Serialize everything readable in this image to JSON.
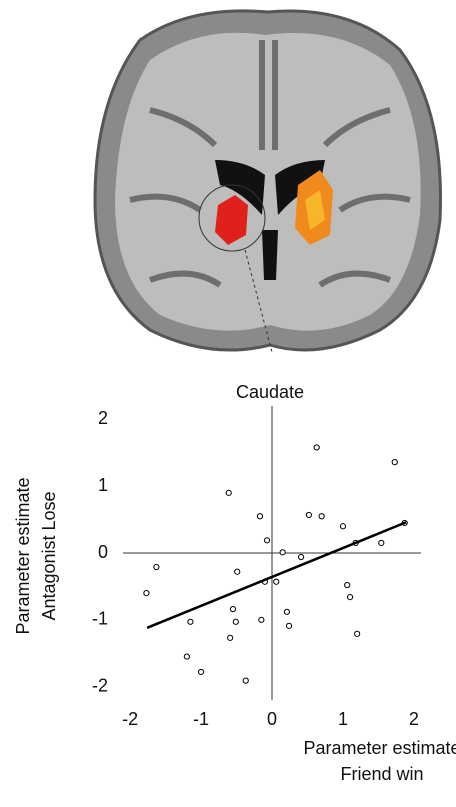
{
  "chart_data": {
    "type": "scatter",
    "title": "Caudate",
    "xlabel": [
      "Parameter estimate",
      "Friend win"
    ],
    "ylabel": [
      "Parameter estimate",
      "Antagonist Lose"
    ],
    "xlim": [
      -2.1,
      2.1
    ],
    "ylim": [
      -2.2,
      2.2
    ],
    "xticks": [
      -2,
      -1,
      0,
      1,
      2
    ],
    "yticks": [
      -2,
      -1,
      0,
      1,
      2
    ],
    "color": "#000000",
    "x": [
      0.63,
      1.73,
      -0.61,
      -0.17,
      0.52,
      0.7,
      1.0,
      1.87,
      -0.07,
      1.18,
      1.54,
      0.15,
      0.41,
      -1.63,
      -0.49,
      -0.1,
      0.06,
      1.06,
      1.1,
      -1.77,
      -0.55,
      0.21,
      -1.15,
      -0.51,
      -0.15,
      0.24,
      -0.59,
      1.2,
      -1.2,
      -1.0,
      -0.37
    ],
    "y": [
      1.58,
      1.36,
      0.9,
      0.55,
      0.57,
      0.55,
      0.4,
      0.45,
      0.19,
      0.15,
      0.15,
      0.01,
      -0.06,
      -0.21,
      -0.28,
      -0.43,
      -0.43,
      -0.48,
      -0.66,
      -0.6,
      -0.84,
      -0.88,
      -1.03,
      -1.03,
      -1.0,
      -1.09,
      -1.27,
      -1.21,
      -1.55,
      -1.78,
      -1.91
    ],
    "fit": {
      "x": [
        -1.76,
        1.89
      ],
      "y": [
        -1.12,
        0.46
      ]
    }
  }
}
